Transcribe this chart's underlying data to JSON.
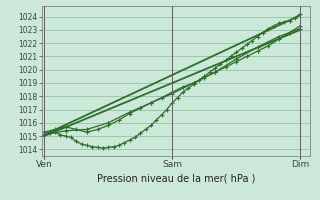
{
  "bg_color": "#cce8d8",
  "grid_color": "#88bb99",
  "line_color": "#2d6e2d",
  "marker_color": "#2d6e2d",
  "ylim": [
    1013.5,
    1024.8
  ],
  "yticks": [
    1014,
    1015,
    1016,
    1017,
    1018,
    1019,
    1020,
    1021,
    1022,
    1023,
    1024
  ],
  "xtick_labels": [
    "Ven",
    "Sam",
    "Dim"
  ],
  "xtick_positions": [
    0.0,
    1.0,
    2.0
  ],
  "xlabel": "Pression niveau de la mer( hPa )",
  "xlim": [
    -0.02,
    2.08
  ],
  "series": [
    {
      "x": [
        0.0,
        0.042,
        0.083,
        0.125,
        0.167,
        0.208,
        0.25,
        0.292,
        0.333,
        0.375,
        0.417,
        0.458,
        0.5,
        0.542,
        0.583,
        0.625,
        0.667,
        0.708,
        0.75,
        0.792,
        0.833,
        0.875,
        0.917,
        0.958,
        1.0,
        1.042,
        1.083,
        1.125,
        1.167,
        1.208,
        1.25,
        1.292,
        1.333,
        1.375,
        1.417,
        1.458,
        1.5,
        1.542,
        1.583,
        1.625,
        1.667,
        1.708,
        1.75,
        1.792,
        1.833,
        1.875,
        1.917,
        1.958,
        2.0
      ],
      "y": [
        1015.1,
        1015.2,
        1015.3,
        1015.1,
        1015.0,
        1014.9,
        1014.6,
        1014.4,
        1014.3,
        1014.2,
        1014.15,
        1014.1,
        1014.15,
        1014.2,
        1014.3,
        1014.5,
        1014.7,
        1014.9,
        1015.2,
        1015.5,
        1015.8,
        1016.2,
        1016.6,
        1017.0,
        1017.5,
        1017.9,
        1018.3,
        1018.6,
        1018.9,
        1019.2,
        1019.5,
        1019.8,
        1020.1,
        1020.4,
        1020.7,
        1021.0,
        1021.3,
        1021.6,
        1021.9,
        1022.2,
        1022.5,
        1022.8,
        1023.1,
        1023.3,
        1023.5,
        1023.6,
        1023.7,
        1023.9,
        1024.2
      ],
      "marker": "+",
      "markersize": 3.5,
      "linewidth": 0.9
    },
    {
      "x": [
        0.0,
        0.083,
        0.167,
        0.25,
        0.333,
        0.417,
        0.5,
        0.583,
        0.667,
        0.75,
        0.833,
        0.917,
        1.0,
        1.083,
        1.167,
        1.25,
        1.333,
        1.417,
        1.5,
        1.583,
        1.667,
        1.75,
        1.833,
        1.917,
        2.0
      ],
      "y": [
        1015.3,
        1015.5,
        1015.7,
        1015.5,
        1015.3,
        1015.5,
        1015.8,
        1016.2,
        1016.7,
        1017.1,
        1017.5,
        1017.9,
        1018.3,
        1018.7,
        1019.0,
        1019.4,
        1019.8,
        1020.2,
        1020.6,
        1021.0,
        1021.4,
        1021.8,
        1022.3,
        1022.8,
        1023.3
      ],
      "marker": "+",
      "markersize": 3.5,
      "linewidth": 0.9
    },
    {
      "x": [
        0.0,
        0.167,
        0.333,
        0.5,
        0.667,
        0.833,
        1.0,
        1.167,
        1.333,
        1.5,
        1.667,
        1.833,
        2.0
      ],
      "y": [
        1015.1,
        1015.4,
        1015.5,
        1016.0,
        1016.8,
        1017.5,
        1018.2,
        1019.0,
        1019.8,
        1020.8,
        1021.7,
        1022.5,
        1023.1
      ],
      "marker": "+",
      "markersize": 3.5,
      "linewidth": 0.9
    },
    {
      "x": [
        0.0,
        2.0
      ],
      "y": [
        1015.0,
        1023.0
      ],
      "marker": null,
      "markersize": 0,
      "linewidth": 1.3
    },
    {
      "x": [
        0.0,
        2.0
      ],
      "y": [
        1015.1,
        1024.1
      ],
      "marker": null,
      "markersize": 0,
      "linewidth": 1.3
    }
  ]
}
